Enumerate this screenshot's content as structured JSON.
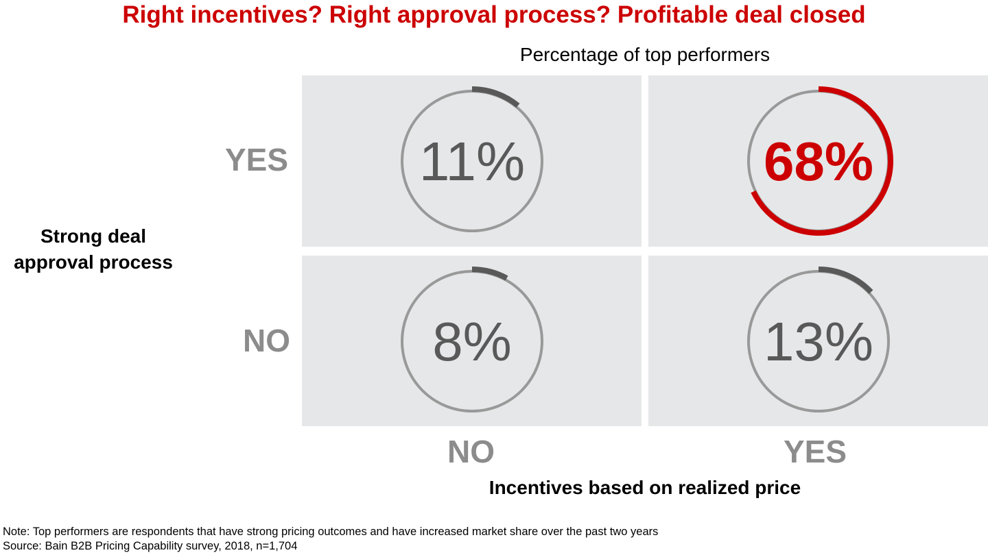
{
  "chart_data": {
    "type": "matrix-gauge",
    "title": "Right incentives? Right approval process? Profitable deal closed",
    "subtitle": "Percentage of top performers",
    "xlabel": "Incentives based on realized price",
    "ylabel": "Strong deal approval process",
    "x_categories": [
      "NO",
      "YES"
    ],
    "y_categories": [
      "YES",
      "NO"
    ],
    "cells": [
      {
        "x": "NO",
        "y": "YES",
        "value": 11,
        "label": "11%",
        "highlight": false
      },
      {
        "x": "YES",
        "y": "YES",
        "value": 68,
        "label": "68%",
        "highlight": true
      },
      {
        "x": "NO",
        "y": "NO",
        "value": 8,
        "label": "8%",
        "highlight": false
      },
      {
        "x": "YES",
        "y": "NO",
        "value": 13,
        "label": "13%",
        "highlight": false
      }
    ],
    "colors": {
      "highlight": "#cc0000",
      "arc": "#595959",
      "ring": "#999999",
      "cell_bg": "#e6e7e8",
      "value_text": "#595959",
      "category_text": "#8c8c8c"
    }
  },
  "notes": {
    "note": "Note: Top performers are respondents that have strong pricing outcomes and have increased market share over the past two years",
    "source": "Source: Bain B2B Pricing Capability survey, 2018, n=1,704"
  }
}
